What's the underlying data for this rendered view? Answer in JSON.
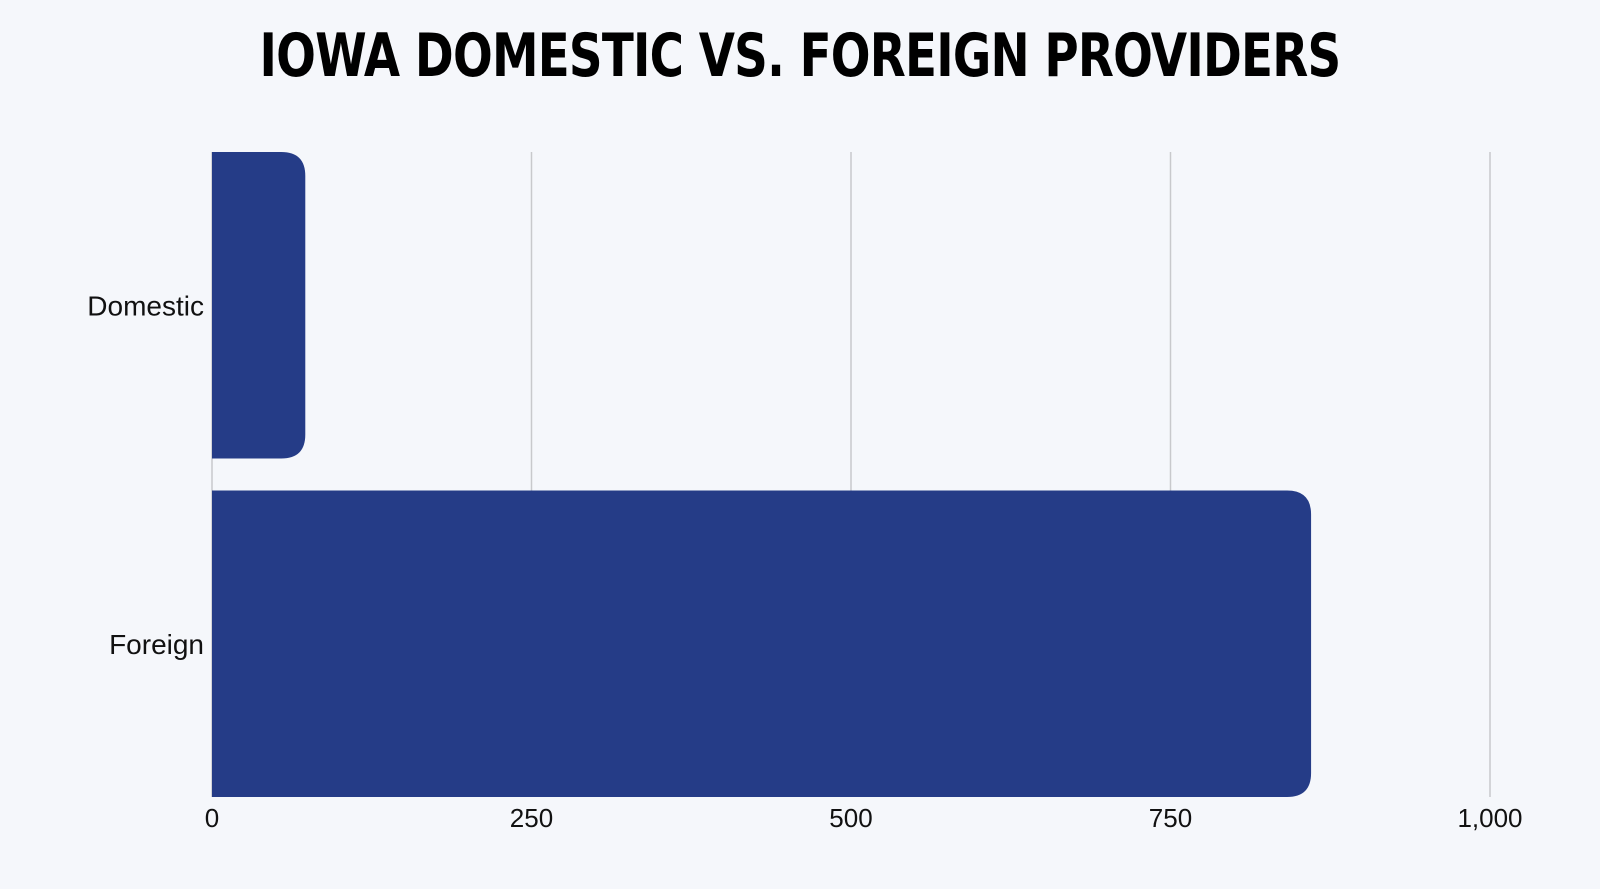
{
  "chart_data": {
    "type": "bar",
    "orientation": "horizontal",
    "title": "IOWA DOMESTIC VS. FOREIGN PROVIDERS",
    "categories": [
      "Domestic",
      "Foreign"
    ],
    "values": [
      73,
      860
    ],
    "xlim": [
      0,
      1000
    ],
    "xticks": [
      0,
      250,
      500,
      750,
      1000
    ],
    "xtick_labels": [
      "0",
      "250",
      "500",
      "750",
      "1,000"
    ],
    "xlabel": "",
    "ylabel": "",
    "grid": true,
    "legend": "none",
    "colors": {
      "bar": "#253c87",
      "grid": "#c8c9cc",
      "background": "#f5f7fb",
      "text": "#111111"
    }
  }
}
